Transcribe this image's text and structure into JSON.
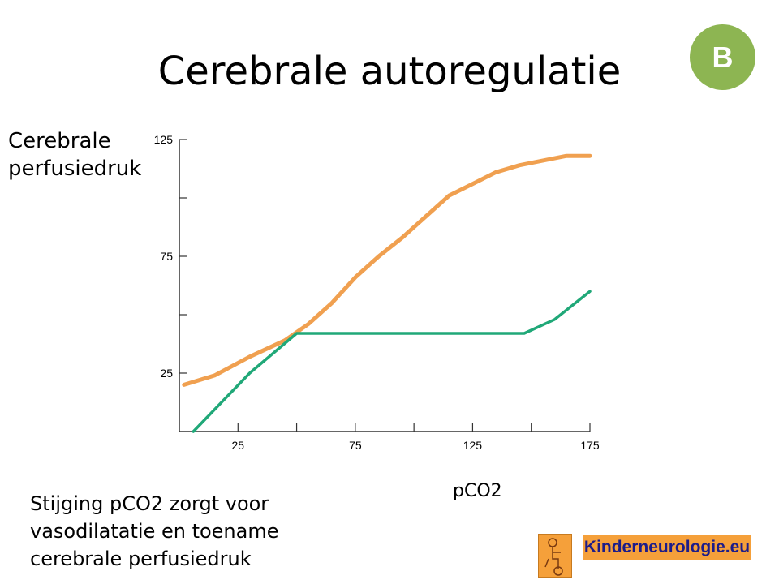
{
  "slide": {
    "title": "Cerebrale autoregulatie",
    "badge": "B",
    "caption": "Stijging pCO2 zorgt voor vasodilatatie en toename cerebrale perfusiedruk",
    "logo_text": "Kinderneurologie.eu",
    "logo_icon": "child-figure-icon"
  },
  "chart_data": {
    "type": "line",
    "title": "",
    "xlabel": "pCO2",
    "ylabel": "Cerebrale perfusiedruk",
    "xlim": [
      0,
      175
    ],
    "ylim": [
      0,
      125
    ],
    "xticks": [
      25,
      50,
      75,
      100,
      125,
      150,
      175
    ],
    "xtick_labels": [
      "25",
      "",
      "75",
      "",
      "125",
      "",
      "175"
    ],
    "yticks": [
      25,
      50,
      75,
      100,
      125
    ],
    "ytick_labels": [
      "25",
      "",
      "75",
      "",
      "125"
    ],
    "grid": false,
    "series": [
      {
        "color": "#f0a050",
        "x": [
          2,
          15,
          30,
          45,
          55,
          65,
          75,
          85,
          95,
          105,
          115,
          125,
          135,
          145,
          155,
          165,
          175
        ],
        "y": [
          20,
          24,
          32,
          39,
          46,
          55,
          66,
          75,
          83,
          92,
          101,
          106,
          111,
          114,
          116,
          118,
          118
        ]
      },
      {
        "color": "#20a878",
        "x": [
          6,
          30,
          50,
          100,
          147,
          160,
          175
        ],
        "y": [
          0,
          25,
          42,
          42,
          42,
          48,
          60
        ]
      }
    ]
  }
}
